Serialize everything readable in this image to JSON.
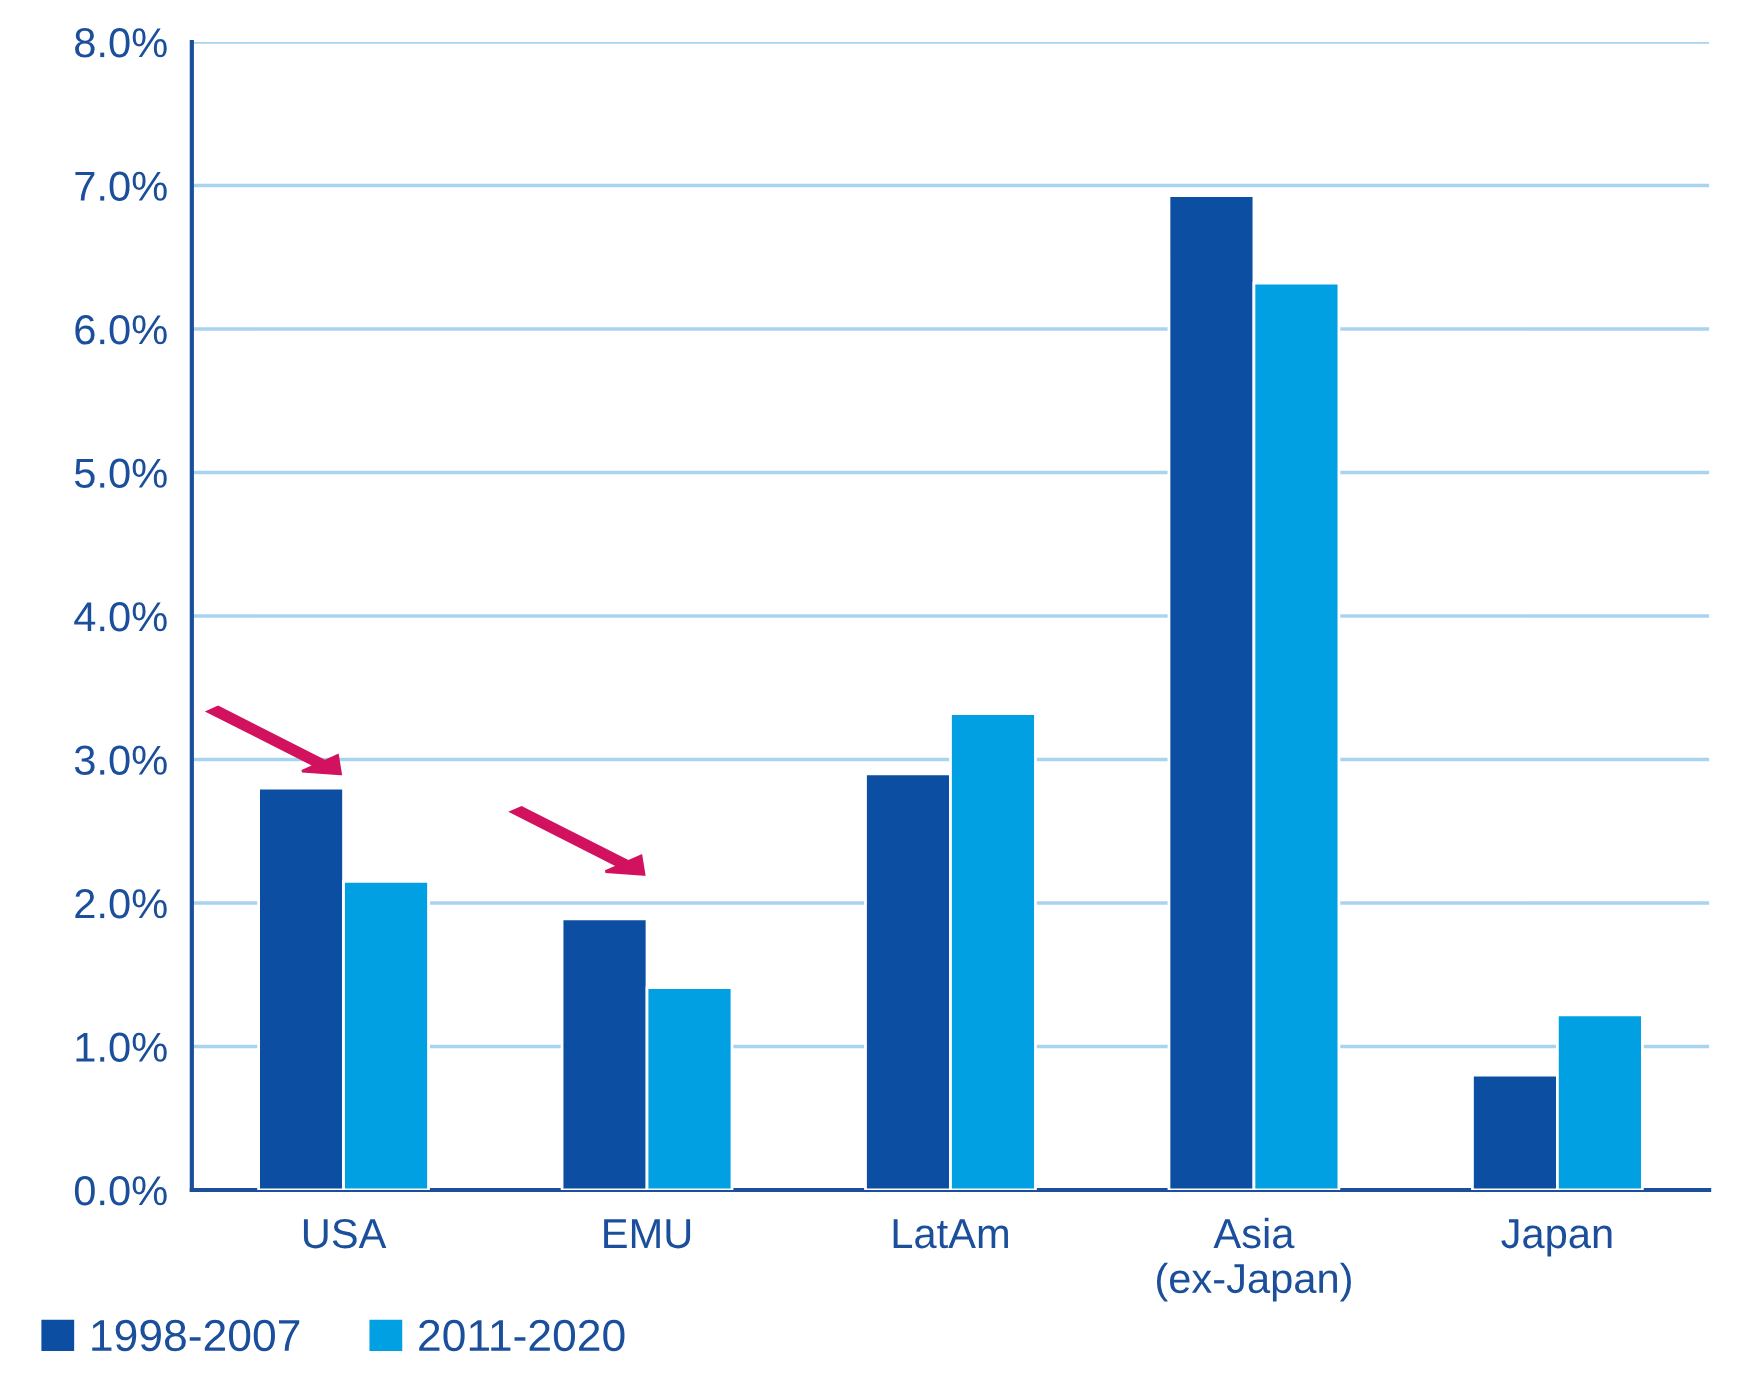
{
  "chart_data": {
    "type": "bar",
    "categories": [
      "USA",
      "EMU",
      "LatAm",
      "Asia\n(ex-Japan)",
      "Japan"
    ],
    "series": [
      {
        "name": "1998-2007",
        "color": "#0b4ea2",
        "values": [
          2.8,
          1.89,
          2.9,
          6.93,
          0.8
        ]
      },
      {
        "name": "2011-2020",
        "color": "#00a0e3",
        "values": [
          2.15,
          1.41,
          3.32,
          6.32,
          1.22
        ]
      }
    ],
    "ylim": [
      0,
      8
    ],
    "yticks": [
      {
        "value": 0,
        "label": "0.0%"
      },
      {
        "value": 1,
        "label": "1.0%"
      },
      {
        "value": 2,
        "label": "2.0%"
      },
      {
        "value": 3,
        "label": "3.0%"
      },
      {
        "value": 4,
        "label": "4.0%"
      },
      {
        "value": 5,
        "label": "5.0%"
      },
      {
        "value": 6,
        "label": "6.0%"
      },
      {
        "value": 7,
        "label": "7.0%"
      },
      {
        "value": 8,
        "label": "8.0%"
      }
    ],
    "grid": "y",
    "legend": "bottom left"
  }
}
